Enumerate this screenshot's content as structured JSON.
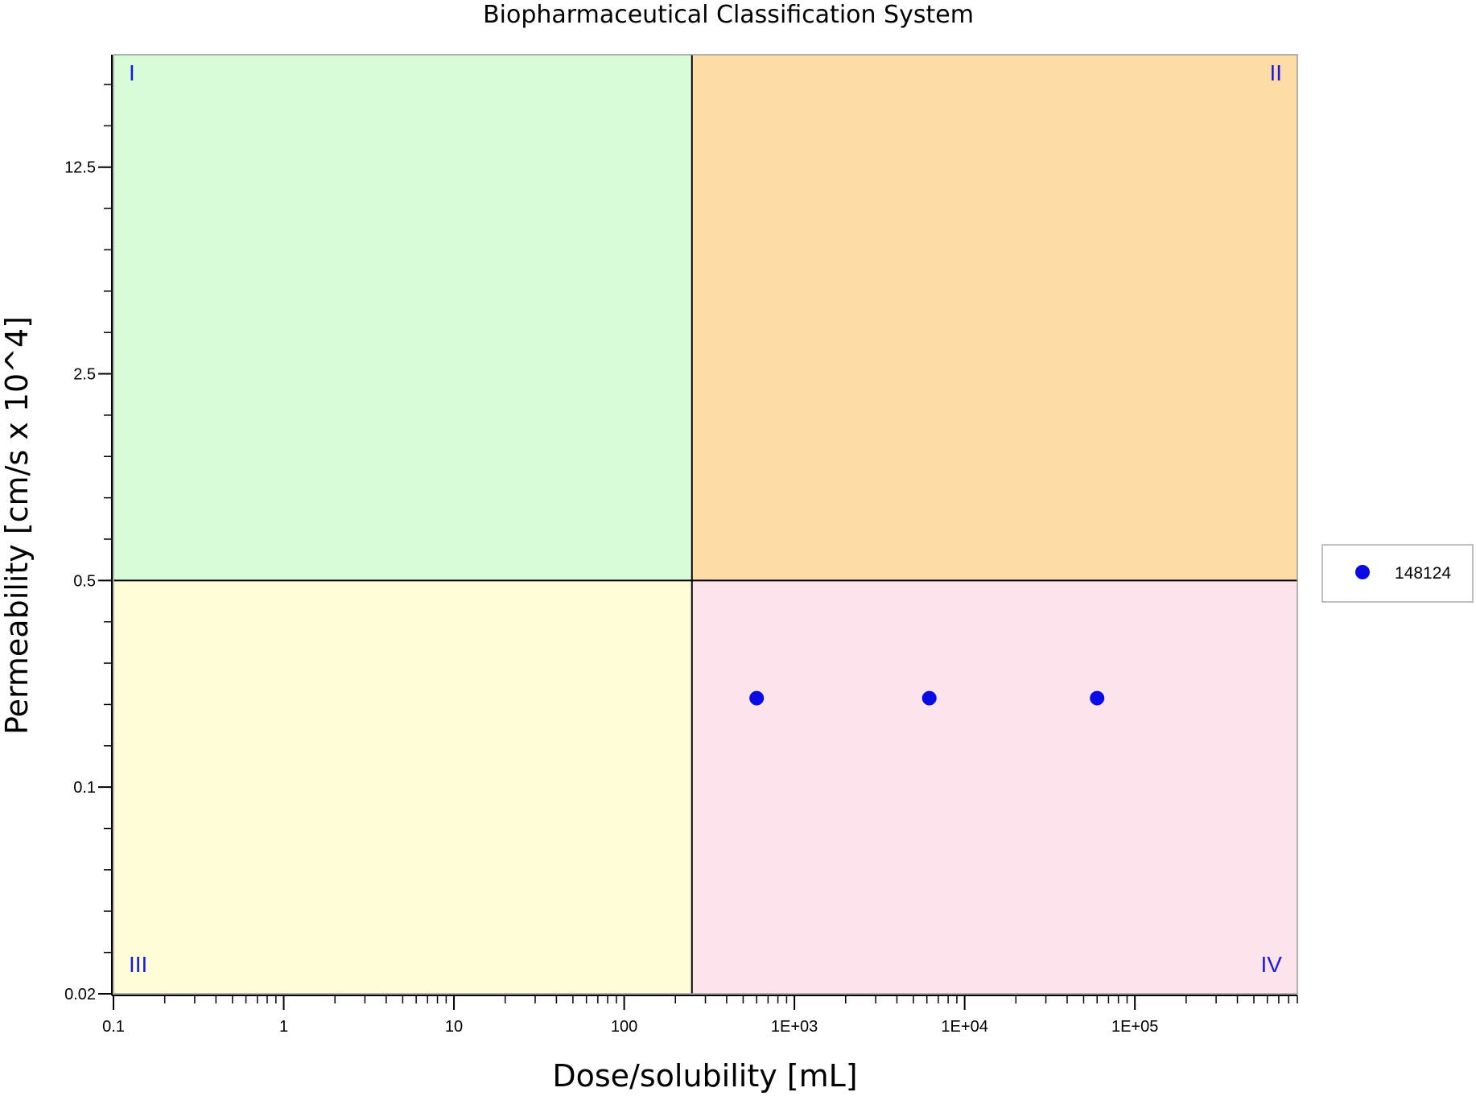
{
  "chart_data": {
    "type": "scatter",
    "title": "Biopharmaceutical Classification System",
    "xlabel": "Dose/solubility [mL]",
    "ylabel": "Permeability [cm/s x 10^4]",
    "x_scale": "log",
    "y_scale": "log",
    "xlim": [
      0.1,
      900000
    ],
    "ylim": [
      0.02,
      30
    ],
    "x_ticks": [
      {
        "value": 0.1,
        "label": "0.1"
      },
      {
        "value": 1,
        "label": "1"
      },
      {
        "value": 10,
        "label": "10"
      },
      {
        "value": 100,
        "label": "100"
      },
      {
        "value": 1000,
        "label": "1E+03"
      },
      {
        "value": 10000,
        "label": "1E+04"
      },
      {
        "value": 100000,
        "label": "1E+05"
      }
    ],
    "y_ticks": [
      {
        "value": 0.02,
        "label": "0.02"
      },
      {
        "value": 0.1,
        "label": "0.1"
      },
      {
        "value": 0.5,
        "label": "0.5"
      },
      {
        "value": 2.5,
        "label": "2.5"
      },
      {
        "value": 12.5,
        "label": "12.5"
      }
    ],
    "boundaries": {
      "x": 250,
      "y": 0.5
    },
    "regions": [
      {
        "label": "I",
        "color": "#d8fcd8",
        "x_range": [
          0.1,
          250
        ],
        "y_range": [
          0.5,
          30
        ],
        "label_corner": "top-left"
      },
      {
        "label": "II",
        "color": "#fddca6",
        "x_range": [
          250,
          900000
        ],
        "y_range": [
          0.5,
          30
        ],
        "label_corner": "top-right"
      },
      {
        "label": "III",
        "color": "#fefdd8",
        "x_range": [
          0.1,
          250
        ],
        "y_range": [
          0.02,
          0.5
        ],
        "label_corner": "bottom-left"
      },
      {
        "label": "IV",
        "color": "#fde4ec",
        "x_range": [
          250,
          900000
        ],
        "y_range": [
          0.02,
          0.5
        ],
        "label_corner": "bottom-right"
      }
    ],
    "series": [
      {
        "name": "148124",
        "color": "#0a0ae6",
        "points": [
          {
            "x": 600,
            "y": 0.2
          },
          {
            "x": 6200,
            "y": 0.2
          },
          {
            "x": 60000,
            "y": 0.2
          }
        ]
      }
    ],
    "legend_position": "right",
    "grid": false
  }
}
